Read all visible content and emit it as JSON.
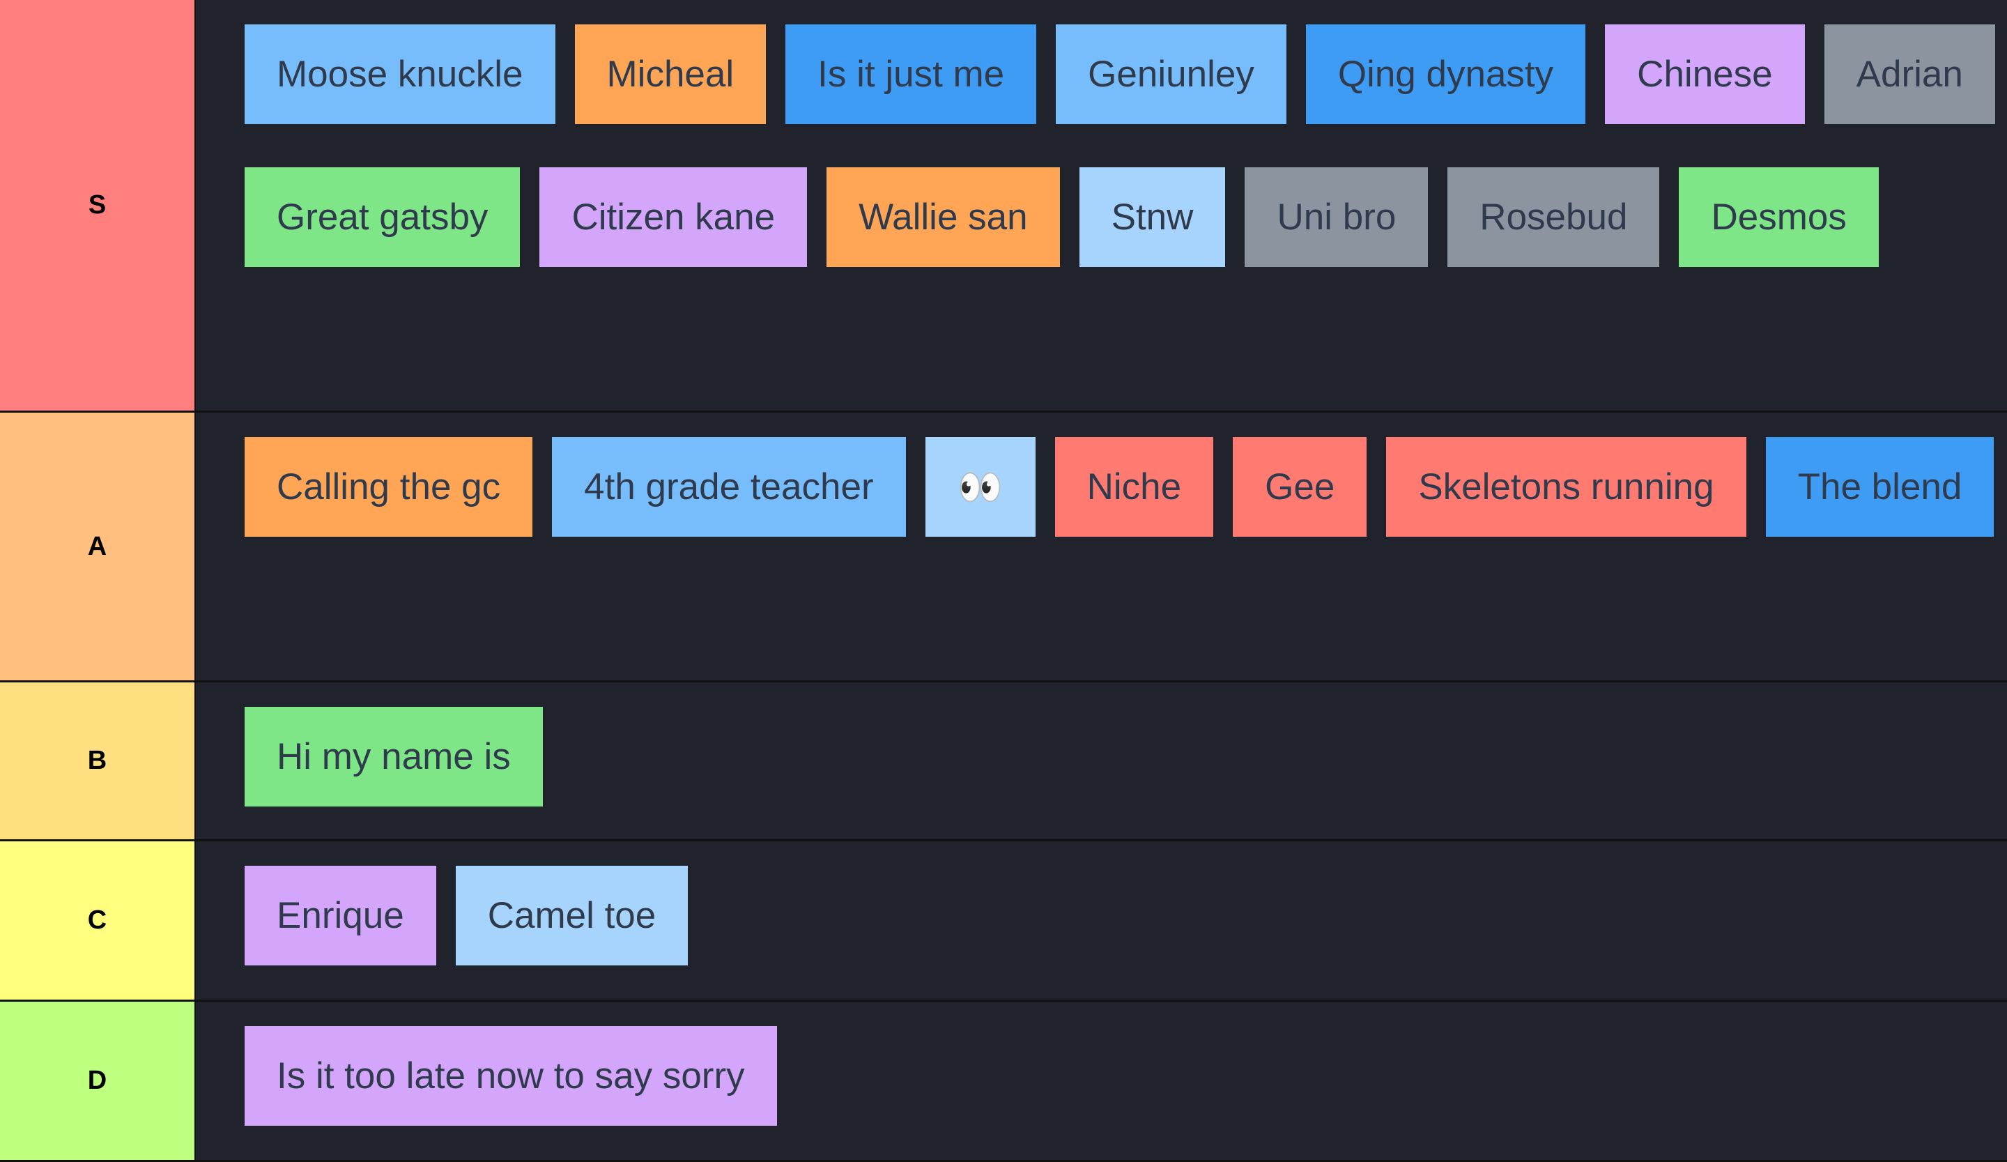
{
  "colors": {
    "background": "#20232b",
    "text": "#2f3b4c"
  },
  "tiers": [
    {
      "label": "S",
      "color": "#ff7f7f",
      "items": [
        {
          "text": "Moose knuckle",
          "color": "#78bdfb"
        },
        {
          "text": "Micheal",
          "color": "#ffa656"
        },
        {
          "text": "Is it just me",
          "color": "#3f9cf5"
        },
        {
          "text": "Geniunley",
          "color": "#78bdfb"
        },
        {
          "text": "Qing dynasty",
          "color": "#3f9cf5"
        },
        {
          "text": "Chinese",
          "color": "#d3a6fb"
        },
        {
          "text": "Adrian",
          "color": "#8b949f"
        },
        {
          "text": "Great gatsby",
          "color": "#7ee686"
        },
        {
          "text": "Citizen kane",
          "color": "#d3a6fb"
        },
        {
          "text": "Wallie san",
          "color": "#ffa656"
        },
        {
          "text": "Stnw",
          "color": "#a6d4fc"
        },
        {
          "text": "Uni bro",
          "color": "#8b949f"
        },
        {
          "text": "Rosebud",
          "color": "#8b949f"
        },
        {
          "text": "Desmos",
          "color": "#7ee686"
        }
      ]
    },
    {
      "label": "A",
      "color": "#ffbf7f",
      "items": [
        {
          "text": "Calling the gc",
          "color": "#ffa656"
        },
        {
          "text": "4th grade teacher",
          "color": "#78bdfb"
        },
        {
          "text": "👀",
          "color": "#a6d4fc"
        },
        {
          "text": "Niche",
          "color": "#ff7b72"
        },
        {
          "text": "Gee",
          "color": "#ff7b72"
        },
        {
          "text": "Skeletons running",
          "color": "#ff7b72"
        },
        {
          "text": "The blend",
          "color": "#3f9cf5"
        }
      ]
    },
    {
      "label": "B",
      "color": "#ffdf7f",
      "items": [
        {
          "text": "Hi my name is",
          "color": "#7ee686"
        }
      ]
    },
    {
      "label": "C",
      "color": "#ffff7f",
      "items": [
        {
          "text": "Enrique",
          "color": "#d3a6fb"
        },
        {
          "text": "Camel toe",
          "color": "#a6d4fc"
        }
      ]
    },
    {
      "label": "D",
      "color": "#bfff7f",
      "items": [
        {
          "text": "Is it too late now to say sorry",
          "color": "#d3a6fb"
        }
      ]
    }
  ]
}
